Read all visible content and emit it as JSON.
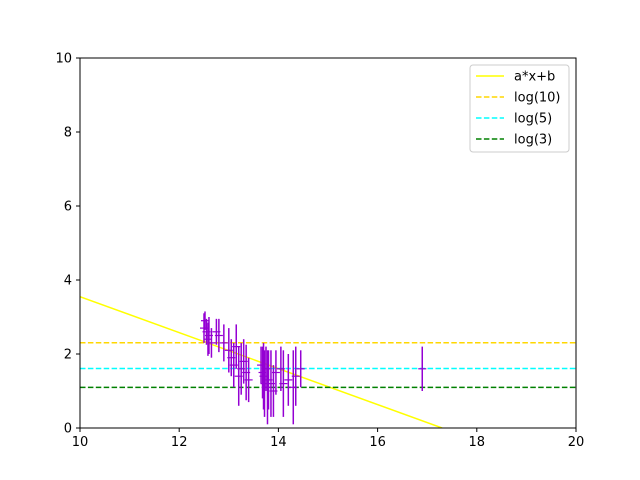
{
  "chart_data": {
    "type": "scatter",
    "title": "",
    "xlabel": "",
    "ylabel": "",
    "xlim": [
      10,
      20
    ],
    "ylim": [
      0,
      10
    ],
    "xticks": [
      10,
      12,
      14,
      16,
      18,
      20
    ],
    "yticks": [
      0,
      2,
      4,
      6,
      8,
      10
    ],
    "grid": false,
    "legend_position": "top-right",
    "errorbar_color": "#9400d3",
    "points": [
      {
        "x": 12.5,
        "y": 2.7,
        "yerr": 0.4
      },
      {
        "x": 12.52,
        "y": 2.9,
        "yerr": 0.25
      },
      {
        "x": 12.55,
        "y": 2.6,
        "yerr": 0.35
      },
      {
        "x": 12.58,
        "y": 2.4,
        "yerr": 0.45
      },
      {
        "x": 12.6,
        "y": 2.5,
        "yerr": 0.5
      },
      {
        "x": 12.65,
        "y": 2.3,
        "yerr": 0.4
      },
      {
        "x": 12.75,
        "y": 2.6,
        "yerr": 0.35
      },
      {
        "x": 12.8,
        "y": 2.5,
        "yerr": 0.45
      },
      {
        "x": 12.9,
        "y": 2.3,
        "yerr": 0.5
      },
      {
        "x": 13.0,
        "y": 2.1,
        "yerr": 0.6
      },
      {
        "x": 13.05,
        "y": 1.9,
        "yerr": 0.5
      },
      {
        "x": 13.1,
        "y": 1.7,
        "yerr": 0.6
      },
      {
        "x": 13.15,
        "y": 2.2,
        "yerr": 0.6
      },
      {
        "x": 13.2,
        "y": 1.4,
        "yerr": 0.8
      },
      {
        "x": 13.25,
        "y": 1.6,
        "yerr": 0.7
      },
      {
        "x": 13.3,
        "y": 1.8,
        "yerr": 0.6
      },
      {
        "x": 13.35,
        "y": 1.5,
        "yerr": 0.75
      },
      {
        "x": 13.4,
        "y": 1.3,
        "yerr": 0.6
      },
      {
        "x": 13.65,
        "y": 1.7,
        "yerr": 0.5
      },
      {
        "x": 13.68,
        "y": 1.5,
        "yerr": 0.7
      },
      {
        "x": 13.7,
        "y": 1.4,
        "yerr": 0.9
      },
      {
        "x": 13.72,
        "y": 1.2,
        "yerr": 0.9
      },
      {
        "x": 13.75,
        "y": 1.6,
        "yerr": 0.6
      },
      {
        "x": 13.78,
        "y": 1.1,
        "yerr": 1.0
      },
      {
        "x": 13.8,
        "y": 1.3,
        "yerr": 0.8
      },
      {
        "x": 13.85,
        "y": 1.2,
        "yerr": 0.9
      },
      {
        "x": 13.9,
        "y": 1.0,
        "yerr": 0.7
      },
      {
        "x": 13.95,
        "y": 1.5,
        "yerr": 0.6
      },
      {
        "x": 14.05,
        "y": 1.6,
        "yerr": 0.6
      },
      {
        "x": 14.1,
        "y": 1.2,
        "yerr": 0.9
      },
      {
        "x": 14.2,
        "y": 1.3,
        "yerr": 0.7
      },
      {
        "x": 14.3,
        "y": 1.1,
        "yerr": 1.0
      },
      {
        "x": 14.35,
        "y": 1.4,
        "yerr": 0.8
      },
      {
        "x": 14.45,
        "y": 1.6,
        "yerr": 0.5
      },
      {
        "x": 16.9,
        "y": 1.6,
        "yerr": 0.6
      }
    ],
    "lines": [
      {
        "name": "a*x+b",
        "kind": "linear",
        "x": [
          10,
          17.3
        ],
        "y": [
          3.55,
          0
        ],
        "color": "#ffff00",
        "style": "solid"
      },
      {
        "name": "log(10)",
        "kind": "hline",
        "y": 2.302585,
        "color": "#ffd700",
        "style": "dashed"
      },
      {
        "name": "log(5)",
        "kind": "hline",
        "y": 1.609438,
        "color": "#00ffff",
        "style": "dashed"
      },
      {
        "name": "log(3)",
        "kind": "hline",
        "y": 1.098612,
        "color": "#008000",
        "style": "dashed"
      }
    ]
  }
}
